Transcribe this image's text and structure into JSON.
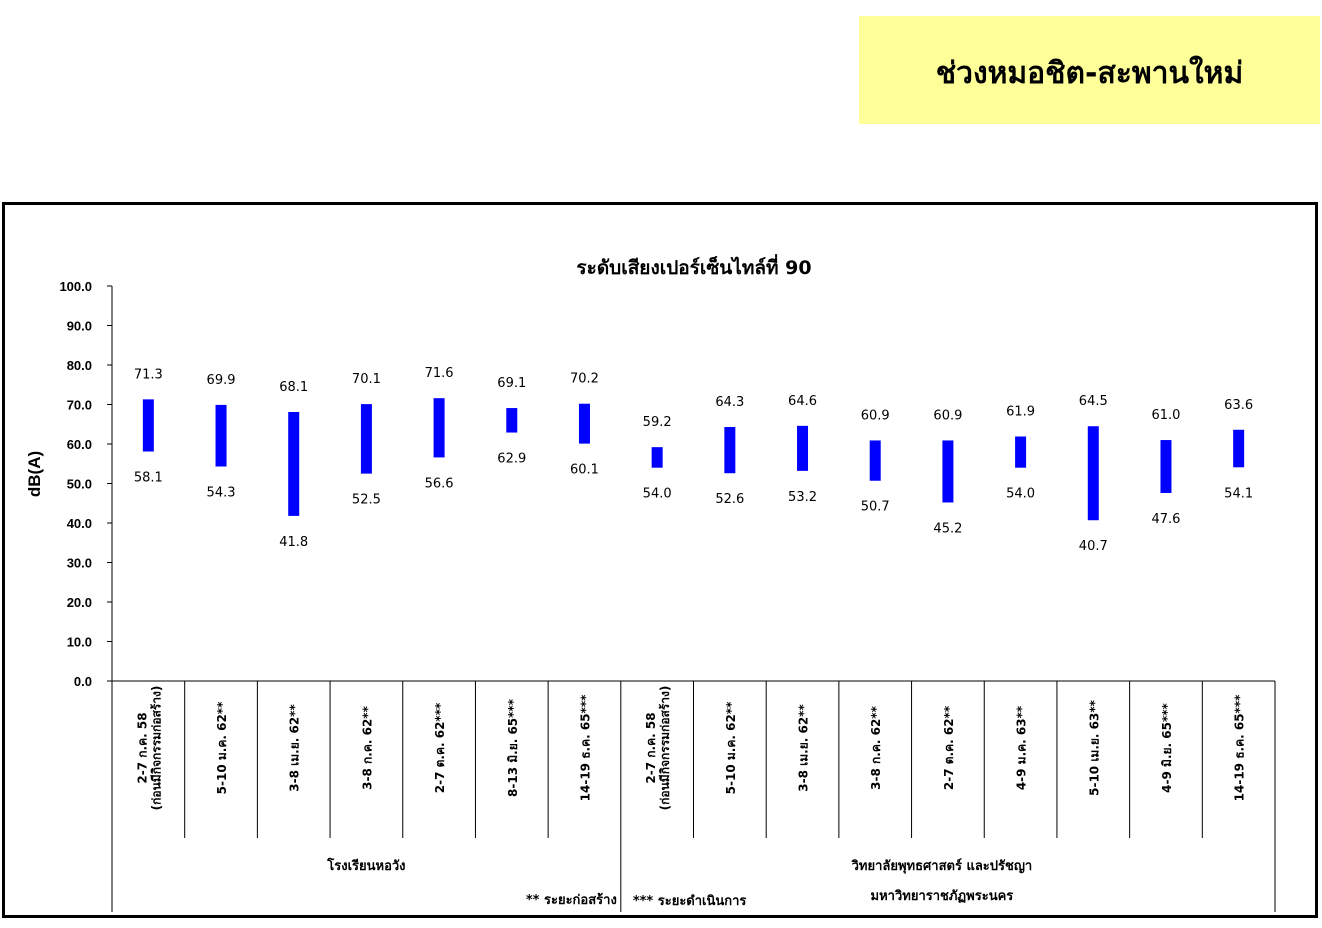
{
  "header": {
    "title": "ช่วงหมอชิต-สะพานใหม่"
  },
  "chart_data": {
    "type": "bar",
    "subtype": "floating-range",
    "title": "ระดับเสียงเปอร์เซ็นไทล์ที่ 90",
    "ylabel": "dB(A)",
    "xlabel": "",
    "ylim": [
      0,
      100
    ],
    "ytick_labels": [
      "0.0",
      "10.0",
      "20.0",
      "30.0",
      "40.0",
      "50.0",
      "60.0",
      "70.0",
      "80.0",
      "90.0",
      "100.0"
    ],
    "bar_color": "#0000ff",
    "grid": false,
    "categories": [
      [
        "2-7 ก.ค. 58",
        "(ก่อนมีกิจกรรมก่อสร้าง)"
      ],
      [
        "5-10 ม.ค. 62**"
      ],
      [
        "3-8 เม.ย. 62**"
      ],
      [
        "3-8 ก.ค. 62**"
      ],
      [
        "2-7 ต.ค. 62***"
      ],
      [
        "8-13 มิ.ย. 65***"
      ],
      [
        "14-19 ธ.ค. 65***"
      ],
      [
        "2-7 ก.ค. 58",
        "(ก่อนมีกิจกรรมก่อสร้าง)"
      ],
      [
        "5-10 ม.ค. 62**"
      ],
      [
        "3-8 เม.ย. 62**"
      ],
      [
        "3-8 ก.ค. 62**"
      ],
      [
        "2-7 ต.ค. 62**"
      ],
      [
        "4-9 ม.ค. 63**"
      ],
      [
        "5-10 เม.ย. 63**"
      ],
      [
        "4-9 มิ.ย. 65***"
      ],
      [
        "14-19 ธ.ค. 65***"
      ]
    ],
    "max_values": [
      71.3,
      69.9,
      68.1,
      70.1,
      71.6,
      69.1,
      70.2,
      59.2,
      64.3,
      64.6,
      60.9,
      60.9,
      61.9,
      64.5,
      61.0,
      63.6
    ],
    "min_values": [
      58.1,
      54.3,
      41.8,
      52.5,
      56.6,
      62.9,
      60.1,
      54.0,
      52.6,
      53.2,
      50.7,
      45.2,
      54.0,
      40.7,
      47.6,
      54.1
    ],
    "max_labels": [
      "71.3",
      "69.9",
      "68.1",
      "70.1",
      "71.6",
      "69.1",
      "70.2",
      "59.2",
      "64.3",
      "64.6",
      "60.9",
      "60.9",
      "61.9",
      "64.5",
      "61.0",
      "63.6"
    ],
    "min_labels": [
      "58.1",
      "54.3",
      "41.8",
      "52.5",
      "56.6",
      "62.9",
      "60.1",
      "54.0",
      "52.6",
      "53.2",
      "50.7",
      "45.2",
      "54.0",
      "40.7",
      "47.6",
      "54.1"
    ],
    "groups": [
      {
        "name": "โรงเรียนหอวัง",
        "count": 7,
        "lines": [
          "โรงเรียนหอวัง"
        ]
      },
      {
        "name": "วิทยาลัยพุทธศาสตร์ และปรัชญา มหาวิทยาราชภัฏพระนคร",
        "count": 9,
        "lines": [
          "วิทยาลัยพุทธศาสตร์ และปรัชญา",
          "มหาวิทยาราชภัฏพระนคร"
        ]
      }
    ],
    "notes": [
      "** ระยะก่อสร้าง",
      "*** ระยะดำเนินการ"
    ]
  }
}
